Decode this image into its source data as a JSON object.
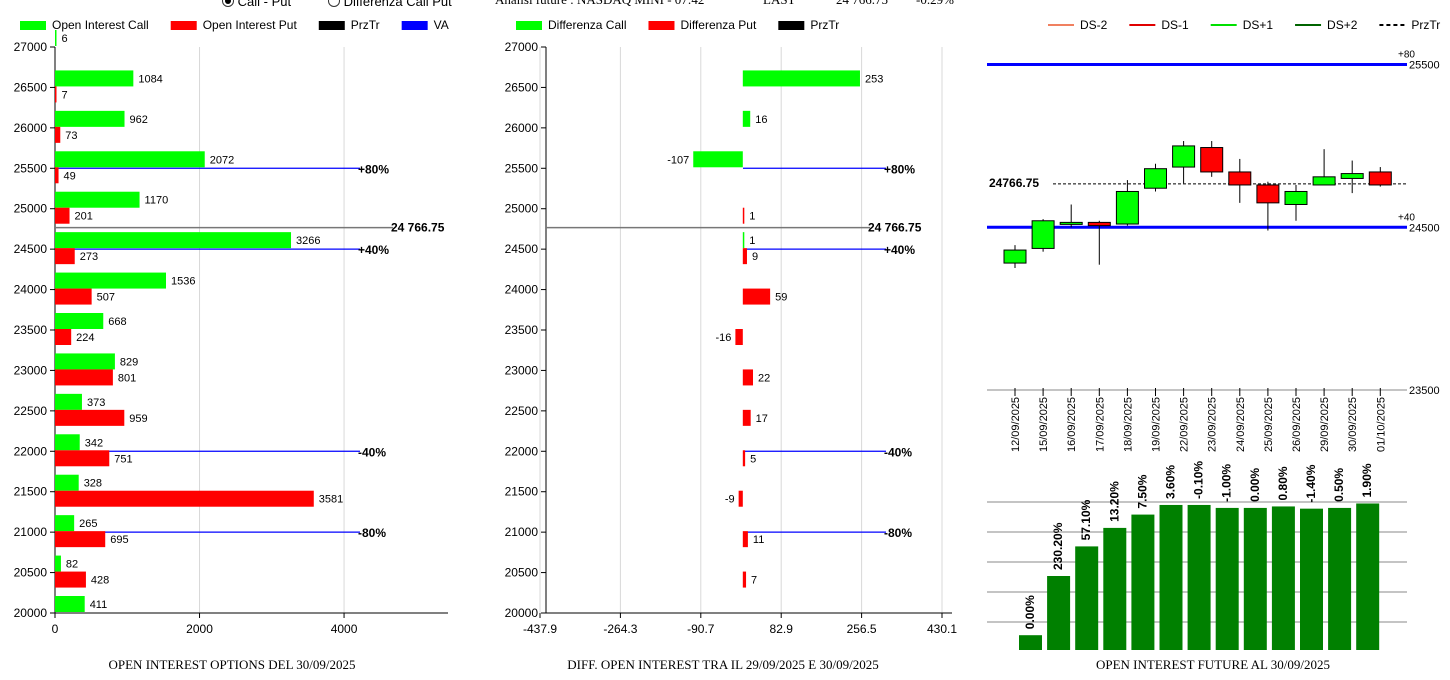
{
  "header": {
    "radio_call_put": "Call - Put",
    "radio_diff": "Differenza Call Put",
    "ticker_label": "Analisi future : NASDAQ MINI - 07:42",
    "last_label": "LAST",
    "last_value": "24 766.75",
    "change": "-0.29%"
  },
  "colors": {
    "green": "#00ff00",
    "red": "#ff0000",
    "blue": "#0000ff",
    "dark_green": "#008000"
  },
  "chart_data": [
    {
      "type": "bar",
      "title": "OPEN INTEREST OPTIONS DEL 30/09/2025",
      "legend": [
        "Open Interest Call",
        "Open Interest Put",
        "PrzTr",
        "VA"
      ],
      "categories": [
        27000,
        26500,
        26000,
        25500,
        25000,
        24500,
        24000,
        23500,
        23000,
        22500,
        22000,
        21500,
        21000,
        20500,
        20000
      ],
      "series": [
        {
          "name": "Open Interest Call",
          "values": [
            6,
            1084,
            962,
            2072,
            1170,
            3266,
            1536,
            668,
            829,
            373,
            342,
            328,
            265,
            82,
            411
          ]
        },
        {
          "name": "Open Interest Put",
          "values": [
            null,
            7,
            73,
            49,
            201,
            273,
            507,
            224,
            801,
            959,
            751,
            3581,
            695,
            428,
            null
          ]
        }
      ],
      "xticks": [
        "0",
        "2000",
        "4000"
      ],
      "yticks": [
        "27000",
        "26500",
        "26000",
        "25500",
        "25000",
        "24500",
        "24000",
        "23500",
        "23000",
        "22500",
        "22000",
        "21500",
        "21000",
        "20500",
        "20000"
      ],
      "xlim": [
        0,
        5300
      ],
      "ylim": [
        20000,
        27000
      ],
      "reference_lines": [
        {
          "y": 25500,
          "label": "+80%"
        },
        {
          "y": 24766.75,
          "label": "24 766.75"
        },
        {
          "y": 24500,
          "label": "+40%"
        },
        {
          "y": 22000,
          "label": "-40%"
        },
        {
          "y": 21000,
          "label": "-80%"
        }
      ]
    },
    {
      "type": "bar",
      "title": "DIFF. OPEN INTEREST TRA IL 29/09/2025 E 30/09/2025",
      "legend": [
        "Differenza Call",
        "Differenza Put",
        "PrzTr"
      ],
      "categories": [
        27000,
        26500,
        26000,
        25500,
        25000,
        24500,
        24000,
        23500,
        23000,
        22500,
        22000,
        21500,
        21000,
        20500,
        20000
      ],
      "series": [
        {
          "name": "Differenza Call",
          "values": [
            null,
            253,
            16,
            -107,
            null,
            1,
            null,
            null,
            null,
            null,
            null,
            null,
            null,
            null,
            null
          ]
        },
        {
          "name": "Differenza Put",
          "values": [
            null,
            null,
            null,
            null,
            1,
            9,
            59,
            -16,
            22,
            17,
            5,
            -9,
            11,
            7,
            null
          ]
        }
      ],
      "xticks": [
        "-437.9",
        "-264.3",
        "-90.7",
        "82.9",
        "256.5",
        "430.1"
      ],
      "yticks": [
        "27000",
        "26500",
        "26000",
        "25500",
        "25000",
        "24500",
        "24000",
        "23500",
        "23000",
        "22500",
        "22000",
        "21500",
        "21000",
        "20500",
        "20000"
      ],
      "xlim": [
        -437.9,
        430.1
      ],
      "ylim": [
        20000,
        27000
      ],
      "reference_lines": [
        {
          "y": 25500,
          "label": "+80%"
        },
        {
          "y": 24766.75,
          "label": "24 766.75"
        },
        {
          "y": 24500,
          "label": "+40%"
        },
        {
          "y": 22000,
          "label": "-40%"
        },
        {
          "y": 21000,
          "label": "-80%"
        }
      ]
    },
    {
      "type": "candlestick",
      "title": "OPEN INTEREST FUTURE AL 30/09/2025",
      "legend": [
        "DS-2",
        "DS-1",
        "DS+1",
        "DS+2",
        "PrzTr"
      ],
      "dates": [
        "12/09/2025",
        "15/09/2025",
        "16/09/2025",
        "17/09/2025",
        "18/09/2025",
        "19/09/2025",
        "22/09/2025",
        "23/09/2025",
        "24/09/2025",
        "25/09/2025",
        "26/09/2025",
        "29/09/2025",
        "30/09/2025",
        "01/10/2025"
      ],
      "candles": [
        {
          "open": 24280,
          "close": 24360,
          "high": 24390,
          "low": 24250,
          "dir": "up"
        },
        {
          "open": 24370,
          "close": 24540,
          "high": 24550,
          "low": 24350,
          "dir": "up"
        },
        {
          "open": 24520,
          "close": 24530,
          "high": 24640,
          "low": 24500,
          "dir": "flat"
        },
        {
          "open": 24530,
          "close": 24510,
          "high": 24540,
          "low": 24270,
          "dir": "down"
        },
        {
          "open": 24520,
          "close": 24720,
          "high": 24790,
          "low": 24510,
          "dir": "up"
        },
        {
          "open": 24740,
          "close": 24860,
          "high": 24890,
          "low": 24720,
          "dir": "up"
        },
        {
          "open": 24870,
          "close": 25000,
          "high": 25030,
          "low": 24770,
          "dir": "up"
        },
        {
          "open": 24990,
          "close": 24840,
          "high": 25030,
          "low": 24810,
          "dir": "down"
        },
        {
          "open": 24840,
          "close": 24760,
          "high": 24920,
          "low": 24650,
          "dir": "down"
        },
        {
          "open": 24760,
          "close": 24650,
          "high": 24780,
          "low": 24480,
          "dir": "down"
        },
        {
          "open": 24640,
          "close": 24720,
          "high": 24760,
          "low": 24540,
          "dir": "up"
        },
        {
          "open": 24760,
          "close": 24810,
          "high": 24980,
          "low": 24760,
          "dir": "up"
        },
        {
          "open": 24800,
          "close": 24830,
          "high": 24910,
          "low": 24710,
          "dir": "up"
        },
        {
          "open": 24840,
          "close": 24760,
          "high": 24870,
          "low": 24750,
          "dir": "down"
        }
      ],
      "ylim": [
        23500,
        25700
      ],
      "levels": [
        {
          "value": 25500,
          "label": "25500",
          "tag": "+80"
        },
        {
          "value": 24500,
          "label": "24500",
          "tag": "+40"
        },
        {
          "value": 23500,
          "label": "23500",
          "tag": ""
        }
      ],
      "przTr": {
        "value": 24766.75,
        "label": "24766.75"
      },
      "volume": {
        "values": [
          0.2,
          1.0,
          1.4,
          1.65,
          1.83,
          1.96,
          1.96,
          1.92,
          1.92,
          1.94,
          1.91,
          1.92,
          1.98
        ],
        "labels": [
          "0.00%",
          "230.20%",
          "57.10%",
          "13.20%",
          "7.50%",
          "3.60%",
          "-0.10%",
          "-1.00%",
          "0.00%",
          "0.80%",
          "-1.40%",
          "0.50%",
          "1.90%"
        ]
      }
    }
  ]
}
